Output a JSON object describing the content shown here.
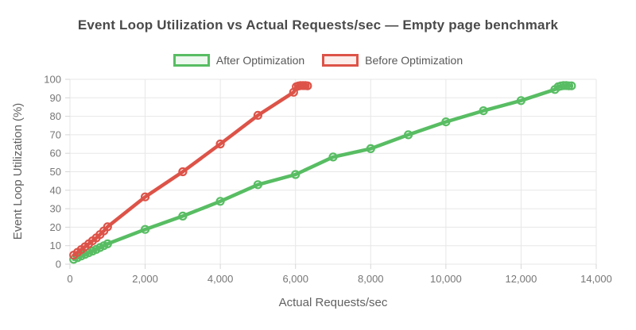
{
  "chart_data": {
    "type": "line",
    "title": "Event Loop Utilization vs Actual Requests/sec — Empty page benchmark",
    "xlabel": "Actual Requests/sec",
    "ylabel": "Event Loop Utilization (%)",
    "xlim": [
      0,
      14000
    ],
    "ylim": [
      0,
      100
    ],
    "x_ticks": [
      0,
      2000,
      4000,
      6000,
      8000,
      10000,
      12000,
      14000
    ],
    "x_tick_labels": [
      "0",
      "2,000",
      "4,000",
      "6,000",
      "8,000",
      "10,000",
      "12,000",
      "14,000"
    ],
    "y_ticks": [
      0,
      10,
      20,
      30,
      40,
      50,
      60,
      70,
      80,
      90,
      100
    ],
    "grid": true,
    "legend_position": "top",
    "series": [
      {
        "name": "After Optimization",
        "color": "#58bd63",
        "fill": "#edf8ee",
        "points": [
          [
            100,
            2.6
          ],
          [
            200,
            3.5
          ],
          [
            300,
            4.4
          ],
          [
            400,
            5.3
          ],
          [
            500,
            6.2
          ],
          [
            600,
            7.1
          ],
          [
            700,
            8.0
          ],
          [
            800,
            9.0
          ],
          [
            900,
            10.0
          ],
          [
            1000,
            11.0
          ],
          [
            2000,
            18.8
          ],
          [
            3000,
            26.0
          ],
          [
            4000,
            34.0
          ],
          [
            5000,
            43.0
          ],
          [
            6000,
            48.5
          ],
          [
            7000,
            58.0
          ],
          [
            8000,
            62.5
          ],
          [
            9000,
            70.0
          ],
          [
            10000,
            77.0
          ],
          [
            11000,
            83.0
          ],
          [
            12000,
            88.5
          ],
          [
            12900,
            94.5
          ],
          [
            12990,
            96.0
          ],
          [
            13060,
            96.4
          ],
          [
            13130,
            96.6
          ],
          [
            13200,
            96.6
          ],
          [
            13270,
            96.5
          ],
          [
            13340,
            96.5
          ]
        ]
      },
      {
        "name": "Before Optimization",
        "color": "#dd5348",
        "fill": "#fcecea",
        "points": [
          [
            100,
            4.9
          ],
          [
            200,
            6.4
          ],
          [
            300,
            7.9
          ],
          [
            400,
            9.4
          ],
          [
            500,
            11.0
          ],
          [
            600,
            12.6
          ],
          [
            700,
            14.2
          ],
          [
            800,
            16.0
          ],
          [
            900,
            18.0
          ],
          [
            1000,
            20.2
          ],
          [
            2000,
            36.4
          ],
          [
            3000,
            50.0
          ],
          [
            4000,
            65.0
          ],
          [
            5000,
            80.5
          ],
          [
            5950,
            93.0
          ],
          [
            6020,
            96.0
          ],
          [
            6080,
            96.4
          ],
          [
            6140,
            96.6
          ],
          [
            6200,
            96.6
          ],
          [
            6260,
            96.6
          ],
          [
            6320,
            96.5
          ]
        ]
      }
    ]
  }
}
